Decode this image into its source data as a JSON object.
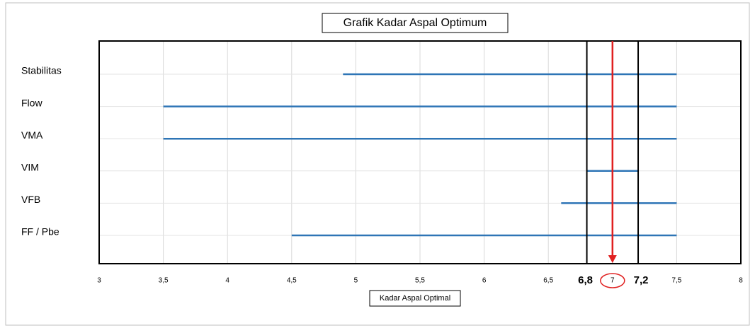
{
  "chart_data": {
    "type": "range",
    "title": "Grafik Kadar Aspal Optimum",
    "xlabel": "Kadar Aspal Optimal",
    "categories": [
      "Stabilitas",
      "Flow",
      "VMA",
      "VIM",
      "VFB",
      "FF / Pbe"
    ],
    "values": [
      [
        4.9,
        7.5
      ],
      [
        3.5,
        7.5
      ],
      [
        3.5,
        7.5
      ],
      [
        6.8,
        7.2
      ],
      [
        6.6,
        7.5
      ],
      [
        4.5,
        7.5
      ]
    ],
    "color": "#2e75b6",
    "xlim": [
      3,
      8
    ],
    "xticks": [
      3,
      {
        "value": 3.5,
        "label": "3,5"
      },
      4,
      {
        "value": 4.5,
        "label": "4,5"
      },
      5,
      {
        "value": 5.5,
        "label": "5,5"
      },
      6,
      {
        "value": 6.5,
        "label": "6,5"
      },
      7,
      {
        "value": 7.5,
        "label": "7,5"
      },
      8
    ],
    "grid": true,
    "markers": [
      {
        "value": 6.8,
        "label": "6,8"
      },
      {
        "value": 7.2,
        "label": "7,2"
      }
    ],
    "marker_color": "#000000",
    "optimum": 7,
    "optimum_color": "#e02020"
  }
}
